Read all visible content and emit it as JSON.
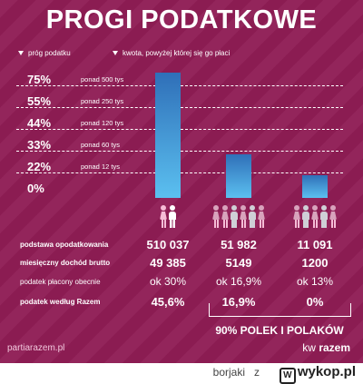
{
  "title": "PROGI PODATKOWE",
  "legend": {
    "threshold_label": "próg podatku",
    "amount_label": "kwota, powyżej której się go płaci"
  },
  "colors": {
    "background": "#8f1d55",
    "bar_top": "#2f6fb8",
    "bar_bottom": "#5bc0f0",
    "woman": "#f6bcd6",
    "man": "#ffffff"
  },
  "chart_data": {
    "type": "bar",
    "categories": [
      "510 037",
      "51 982",
      "11 091"
    ],
    "series": [
      {
        "values": [
          0.456,
          0.169,
          0.0
        ]
      }
    ],
    "y_tick_labels": [
      "75%",
      "55%",
      "44%",
      "33%",
      "22%",
      "0%"
    ],
    "threshold_labels": [
      "ponad 500 tys",
      "ponad 250 tys",
      "ponad 120 tys",
      "ponad 60 tys",
      "ponad 12 tys",
      ""
    ],
    "bar_scale_note": "",
    "ylim": [
      0,
      1
    ]
  },
  "bars_relative_height": [
    1.0,
    0.345,
    0.18
  ],
  "table": {
    "rows": [
      {
        "label": "podstawa opodatkowania",
        "style": "bold",
        "values": [
          "510 037",
          "51 982",
          "11 091"
        ]
      },
      {
        "label": "miesięczny dochód brutto",
        "style": "bold",
        "values": [
          "49 385",
          "5149",
          "1200"
        ]
      },
      {
        "label": "podatek płacony obecnie",
        "style": "light",
        "values": [
          "ok 30%",
          "ok 16,9%",
          "ok 13%"
        ]
      },
      {
        "label": "podatek według Razem",
        "style": "bold",
        "values": [
          "45,6%",
          "16,9%",
          "0%"
        ]
      }
    ]
  },
  "bracket_text": "90% POLEK I POLAKÓW",
  "footer": {
    "left": "partiarazem.pl",
    "right_prefix": "kw",
    "right_brand": "razem"
  },
  "watermark": {
    "user": "borjaki",
    "sep": "z",
    "site": "wykop.pl",
    "logo_char": "W"
  },
  "people_groups": [
    [
      "f",
      "m"
    ],
    [
      "f",
      "f",
      "m",
      "f",
      "m",
      "f"
    ],
    [
      "f",
      "m",
      "f",
      "m",
      "f"
    ]
  ]
}
